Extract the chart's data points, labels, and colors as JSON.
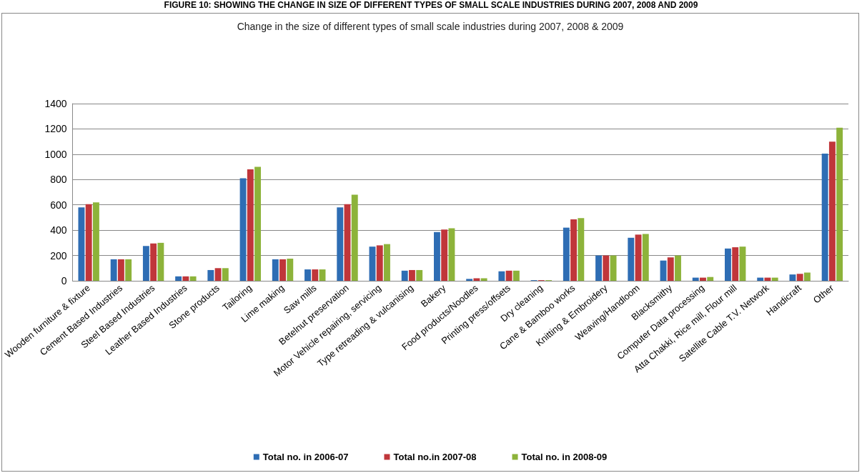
{
  "chart_data": {
    "type": "bar",
    "title": "FIGURE 10: SHOWING THE CHANGE IN SIZE OF DIFFERENT TYPES OF SMALL SCALE INDUSTRIES DURING 2007, 2008 AND 2009",
    "subtitle": "Change in the size of different types of small scale industries during 2007, 2008 & 2009",
    "categories": [
      "Wooden furniture & fixture",
      "Cement Based Industries",
      "Steel Based Industries",
      "Leather Based Industries",
      "Stone products",
      "Tailoring",
      "Lime making",
      "Saw mills",
      "Betelnut preservation",
      "Motor Vehicle repairing, servicing",
      "Type retreading & vulcanising",
      "Bakery",
      "Food products/Noodles",
      "Printing press/offsets",
      "Dry cleaning",
      "Cane & Bamboo works",
      "Knitting & Embroidery",
      "Weaving/Handloom",
      "Blacksmithy",
      "Computer Data processing",
      "Atta Chakki, Rice mill, Flour mill",
      "Satellite Cable T.V. Network",
      "Handicraft",
      "Other"
    ],
    "series": [
      {
        "name": "Total no. in 2006-07",
        "color": "#2e6db4",
        "values": [
          580,
          170,
          275,
          35,
          85,
          810,
          170,
          90,
          580,
          270,
          80,
          385,
          15,
          75,
          5,
          420,
          200,
          340,
          160,
          25,
          255,
          25,
          50,
          1005
        ]
      },
      {
        "name": "Total no.in 2007-08",
        "color": "#c0363a",
        "values": [
          605,
          170,
          295,
          35,
          100,
          880,
          170,
          90,
          605,
          280,
          85,
          405,
          20,
          80,
          5,
          485,
          200,
          365,
          185,
          25,
          265,
          25,
          55,
          1100
        ]
      },
      {
        "name": "Total no. in 2008-09",
        "color": "#8db33a",
        "values": [
          620,
          170,
          300,
          35,
          100,
          900,
          175,
          90,
          680,
          290,
          85,
          415,
          20,
          80,
          5,
          495,
          200,
          370,
          200,
          30,
          270,
          25,
          65,
          1210
        ]
      }
    ],
    "ylim": [
      0,
      1400
    ],
    "yticks": [
      0,
      200,
      400,
      600,
      800,
      1000,
      1200,
      1400
    ],
    "grid": "y",
    "legend": "bottom"
  }
}
